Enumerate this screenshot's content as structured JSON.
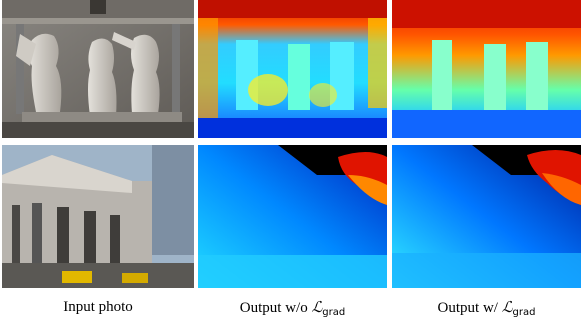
{
  "figure": {
    "captions": {
      "input": "Input photo",
      "without_prefix": "Output w/o ",
      "with_prefix": "Output w/ ",
      "loss_symbol": "ℒ",
      "loss_subscript": "grad"
    },
    "colors": {
      "jet_dark_blue": "#00008f",
      "jet_blue": "#0066ff",
      "jet_cyan": "#22ddff",
      "jet_yellow": "#ffee22",
      "jet_red": "#e01400",
      "jet_dark_red": "#800000",
      "sky_black": "#000000",
      "stone": "#b8b4ae",
      "sky": "#9fb4c8"
    }
  }
}
